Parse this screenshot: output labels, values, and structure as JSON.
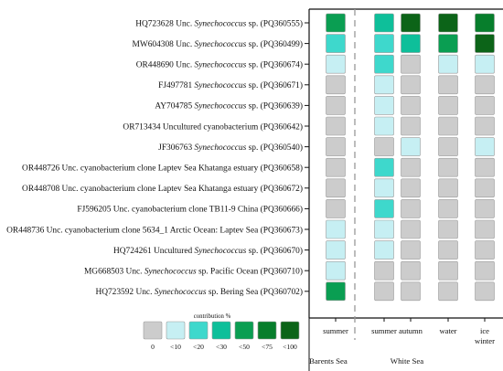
{
  "chart_data": {
    "type": "heatmap",
    "rows": [
      {
        "parts": [
          {
            "t": "HQ723628 Unc. "
          },
          {
            "t": "Synechococcus",
            "i": true
          },
          {
            "t": " sp. (PQ360555)"
          }
        ]
      },
      {
        "parts": [
          {
            "t": "MW604308 Unc. "
          },
          {
            "t": "Synechococcus",
            "i": true
          },
          {
            "t": " sp. (PQ360499)"
          }
        ]
      },
      {
        "parts": [
          {
            "t": "OR448690 Unc. "
          },
          {
            "t": "Synechococcus",
            "i": true
          },
          {
            "t": " sp. (PQ360674)"
          }
        ]
      },
      {
        "parts": [
          {
            "t": "FJ497781 "
          },
          {
            "t": "Synechococcus",
            "i": true
          },
          {
            "t": " sp. (PQ360671)"
          }
        ]
      },
      {
        "parts": [
          {
            "t": "AY704785 "
          },
          {
            "t": "Synechococcus",
            "i": true
          },
          {
            "t": " sp. (PQ360639)"
          }
        ]
      },
      {
        "parts": [
          {
            "t": "OR713434 Uncultured cyanobacterium (PQ360642)"
          }
        ]
      },
      {
        "parts": [
          {
            "t": "JF306763 "
          },
          {
            "t": "Synechococcus",
            "i": true
          },
          {
            "t": " sp. (PQ360540)"
          }
        ]
      },
      {
        "parts": [
          {
            "t": "OR448726 Unc. cyanobacterium clone Laptev Sea Khatanga estuary (PQ360658)"
          }
        ]
      },
      {
        "parts": [
          {
            "t": "OR448708 Unc. cyanobacterium clone Laptev Sea Khatanga estuary (PQ360672)"
          }
        ]
      },
      {
        "parts": [
          {
            "t": "FJ596205 Unc. cyanobacterium clone TB11-9  China (PQ360666)"
          }
        ]
      },
      {
        "parts": [
          {
            "t": "OR448736 Unc. cyanobacterium clone 5634_1 Arctic Ocean: Laptev Sea (PQ360673)"
          }
        ]
      },
      {
        "parts": [
          {
            "t": "HQ724261 Uncultured "
          },
          {
            "t": "Synechococcus",
            "i": true
          },
          {
            "t": " sp. (PQ360670)"
          }
        ]
      },
      {
        "parts": [
          {
            "t": "MG668503 Unc. "
          },
          {
            "t": "Synechococcus",
            "i": true
          },
          {
            "t": " sp. Pacific Ocean (PQ360710)"
          }
        ]
      },
      {
        "parts": [
          {
            "t": "HQ723592 Unc. "
          },
          {
            "t": "Synechococcus",
            "i": true
          },
          {
            "t": " sp. Bering Sea (PQ360702)"
          }
        ]
      }
    ],
    "columns": [
      {
        "lines": [
          "summer"
        ]
      },
      {
        "lines": [
          "summer"
        ]
      },
      {
        "lines": [
          "autumn"
        ]
      },
      {
        "lines": [
          "water"
        ]
      },
      {
        "lines": [
          "ice",
          "winter"
        ]
      }
    ],
    "groups": [
      {
        "label": "Barents Sea",
        "columns": [
          0
        ]
      },
      {
        "label": "White Sea",
        "columns": [
          1,
          2,
          3,
          4
        ]
      }
    ],
    "legend": {
      "title": "contribution %",
      "labels": [
        "0",
        "<10",
        "<20",
        "<30",
        "<50",
        "<75",
        "<100"
      ]
    },
    "colors": [
      "#cccccc",
      "#c6eff3",
      "#3ed8cc",
      "#0ebf9a",
      "#0a9e52",
      "#077e2c",
      "#0c6418"
    ],
    "cell_categories": [
      [
        4,
        3,
        6,
        6,
        5
      ],
      [
        2,
        2,
        3,
        4,
        6
      ],
      [
        1,
        2,
        0,
        1,
        1
      ],
      [
        0,
        1,
        0,
        0,
        0
      ],
      [
        0,
        1,
        0,
        0,
        0
      ],
      [
        0,
        1,
        0,
        0,
        0
      ],
      [
        0,
        0,
        1,
        0,
        1
      ],
      [
        0,
        2,
        0,
        0,
        0
      ],
      [
        0,
        1,
        0,
        0,
        0
      ],
      [
        0,
        2,
        0,
        0,
        0
      ],
      [
        1,
        1,
        0,
        0,
        0
      ],
      [
        1,
        1,
        0,
        0,
        0
      ],
      [
        1,
        0,
        0,
        0,
        0
      ],
      [
        4,
        0,
        0,
        0,
        0
      ]
    ]
  }
}
